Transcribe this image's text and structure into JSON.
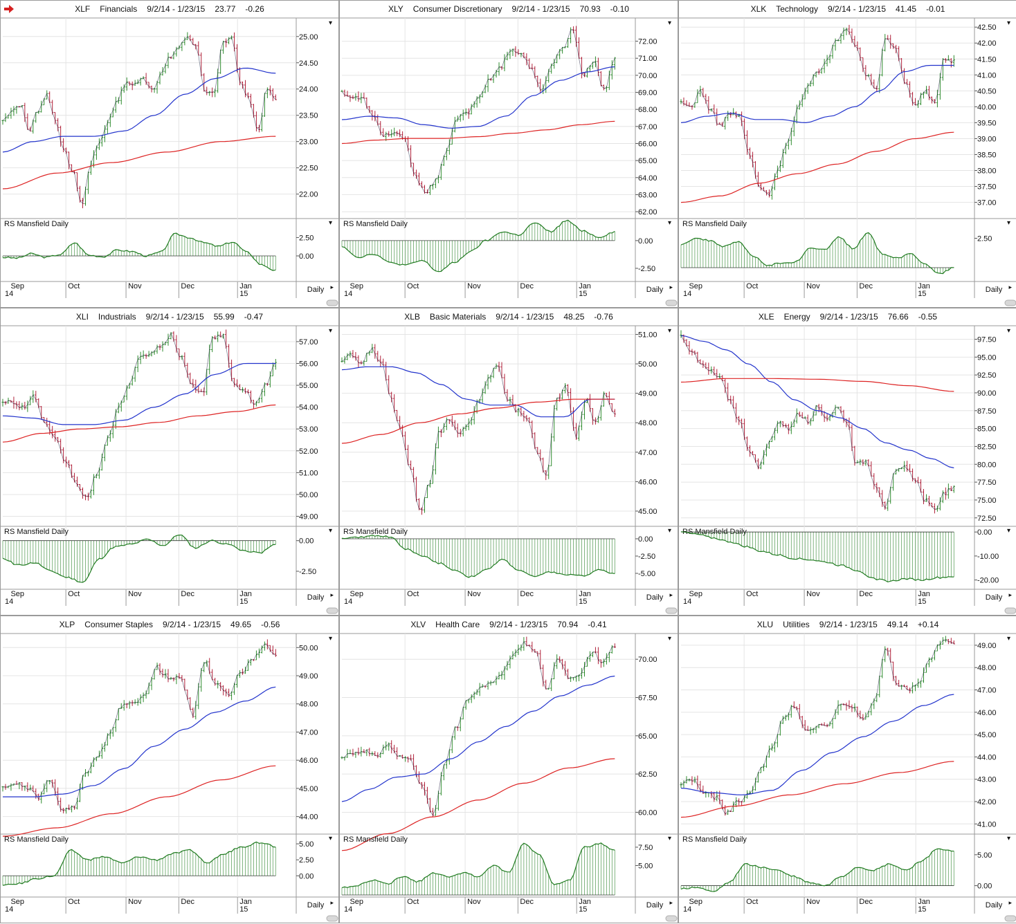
{
  "colors": {
    "price_up": "#2e8b2e",
    "price_down": "#b0213a",
    "ma_short": "#2233cc",
    "ma_long": "#dd2222",
    "rs": "#1e7a1e",
    "grid": "#e4e4e4",
    "border": "#9a9a9a",
    "text": "#111111"
  },
  "rs_label": "RS Mansfield Daily",
  "freq_label": "Daily",
  "header_icon": "arrow-right-icon",
  "date_labels": [
    "Sep",
    "Oct",
    "Nov",
    "Dec",
    "Jan"
  ],
  "year_labels": [
    "14",
    "15"
  ],
  "panels": [
    {
      "symbol": "XLF",
      "name": "Financials",
      "range": "9/2/14 - 1/23/15",
      "last": "23.77",
      "change": "-0.26",
      "price_ticks": [
        "25.00",
        "24.50",
        "24.00",
        "23.50",
        "23.00",
        "22.50",
        "22.00"
      ],
      "rs_ticks": [
        "2.50",
        "0.00"
      ]
    },
    {
      "symbol": "XLY",
      "name": "Consumer Discretionary",
      "range": "9/2/14 - 1/23/15",
      "last": "70.93",
      "change": "-0.10",
      "price_ticks": [
        "72.00",
        "71.00",
        "70.00",
        "69.00",
        "68.00",
        "67.00",
        "66.00",
        "65.00",
        "64.00",
        "63.00",
        "62.00"
      ],
      "rs_ticks": [
        "0.00",
        "-2.50"
      ]
    },
    {
      "symbol": "XLK",
      "name": "Technology",
      "range": "9/2/14 - 1/23/15",
      "last": "41.45",
      "change": "-0.01",
      "price_ticks": [
        "42.50",
        "42.00",
        "41.50",
        "41.00",
        "40.50",
        "40.00",
        "39.50",
        "39.00",
        "38.50",
        "38.00",
        "37.50",
        "37.00"
      ],
      "rs_ticks": [
        "2.50"
      ]
    },
    {
      "symbol": "XLI",
      "name": "Industrials",
      "range": "9/2/14 - 1/23/15",
      "last": "55.99",
      "change": "-0.47",
      "price_ticks": [
        "57.00",
        "56.00",
        "55.00",
        "54.00",
        "53.00",
        "52.00",
        "51.00",
        "50.00",
        "49.00"
      ],
      "rs_ticks": [
        "0.00",
        "-2.50"
      ]
    },
    {
      "symbol": "XLB",
      "name": "Basic Materials",
      "range": "9/2/14 - 1/23/15",
      "last": "48.25",
      "change": "-0.76",
      "price_ticks": [
        "51.00",
        "50.00",
        "49.00",
        "48.00",
        "47.00",
        "46.00",
        "45.00"
      ],
      "rs_ticks": [
        "0.00",
        "-2.50",
        "-5.00"
      ]
    },
    {
      "symbol": "XLE",
      "name": "Energy",
      "range": "9/2/14 - 1/23/15",
      "last": "76.66",
      "change": "-0.55",
      "price_ticks": [
        "97.50",
        "95.00",
        "92.50",
        "90.00",
        "87.50",
        "85.00",
        "82.50",
        "80.00",
        "77.50",
        "75.00",
        "72.50"
      ],
      "rs_ticks": [
        "0.00",
        "-10.00",
        "-20.00"
      ]
    },
    {
      "symbol": "XLP",
      "name": "Consumer Staples",
      "range": "9/2/14 - 1/23/15",
      "last": "49.65",
      "change": "-0.56",
      "price_ticks": [
        "50.00",
        "49.00",
        "48.00",
        "47.00",
        "46.00",
        "45.00",
        "44.00"
      ],
      "rs_ticks": [
        "5.00",
        "2.50",
        "0.00"
      ]
    },
    {
      "symbol": "XLV",
      "name": "Health Care",
      "range": "9/2/14 - 1/23/15",
      "last": "70.94",
      "change": "-0.41",
      "price_ticks": [
        "70.00",
        "67.50",
        "65.00",
        "62.50",
        "60.00"
      ],
      "rs_ticks": [
        "7.50",
        "5.00"
      ]
    },
    {
      "symbol": "XLU",
      "name": "Utilities",
      "range": "9/2/14 - 1/23/15",
      "last": "49.14",
      "change": "+0.14",
      "price_ticks": [
        "49.00",
        "48.00",
        "47.00",
        "46.00",
        "45.00",
        "44.00",
        "43.00",
        "42.00",
        "41.00"
      ],
      "rs_ticks": [
        "5.00",
        "0.00"
      ]
    }
  ],
  "chart_data": [
    {
      "type": "line",
      "title": "XLF Financials",
      "ylim": [
        21.6,
        25.3
      ],
      "rs_ylim": [
        -3.2,
        4.8
      ],
      "price_anchors": [
        23.4,
        23.6,
        23.7,
        23.2,
        23.6,
        23.9,
        23.4,
        22.8,
        22.4,
        21.8,
        22.6,
        23.0,
        23.4,
        23.8,
        24.1,
        24.1,
        24.2,
        24.0,
        24.3,
        24.6,
        24.8,
        25.0,
        24.8,
        23.9,
        23.9,
        24.9,
        25.0,
        24.1,
        23.8,
        23.2,
        24.0,
        23.8
      ],
      "ma_short_anchors": [
        22.8,
        23.0,
        23.1,
        23.1,
        23.2,
        23.5,
        23.9,
        24.2,
        24.4,
        24.3
      ],
      "ma_long_anchors": [
        22.1,
        22.4,
        22.6,
        22.8,
        23.0,
        23.1
      ],
      "rs_anchors": [
        -0.2,
        -0.3,
        0.3,
        -0.2,
        0.2,
        1.8,
        0.1,
        -0.1,
        0.8,
        0.6,
        0.0,
        0.5,
        3.0,
        2.5,
        1.8,
        1.3,
        1.9,
        0.5,
        -1.2,
        -2.0
      ]
    },
    {
      "type": "line",
      "title": "XLY Consumer Discretionary",
      "ylim": [
        61.8,
        73.2
      ],
      "rs_ylim": [
        -3.5,
        1.8
      ],
      "price_anchors": [
        69.0,
        68.7,
        68.6,
        67.5,
        66.5,
        66.6,
        66.2,
        64.0,
        63.2,
        63.8,
        65.7,
        67.5,
        67.8,
        68.7,
        69.7,
        70.4,
        71.5,
        71.3,
        70.5,
        69.0,
        70.7,
        71.6,
        72.7,
        70.0,
        70.9,
        69.1,
        71.0
      ],
      "ma_short_anchors": [
        67.4,
        67.6,
        67.5,
        67.1,
        66.9,
        67.0,
        67.6,
        68.8,
        69.7,
        70.2,
        70.5
      ],
      "ma_long_anchors": [
        66.0,
        66.2,
        66.3,
        66.3,
        66.4,
        66.6,
        66.8,
        67.1,
        67.3
      ],
      "rs_anchors": [
        -0.5,
        -1.5,
        -1.2,
        -2.0,
        -2.2,
        -1.8,
        -2.8,
        -2.0,
        -1.0,
        0.0,
        0.8,
        0.5,
        1.6,
        0.8,
        1.8,
        0.9,
        0.3,
        0.8
      ]
    },
    {
      "type": "line",
      "title": "XLK Technology",
      "ylim": [
        36.6,
        42.7
      ],
      "rs_ylim": [
        -1.0,
        4.0
      ],
      "price_anchors": [
        40.1,
        40.0,
        40.5,
        39.9,
        39.4,
        39.8,
        39.7,
        38.5,
        37.5,
        37.2,
        38.1,
        39.0,
        40.0,
        40.6,
        41.1,
        41.5,
        42.1,
        42.5,
        41.9,
        41.0,
        40.5,
        42.2,
        41.8,
        40.8,
        40.0,
        40.5,
        40.1,
        41.5,
        41.45
      ],
      "ma_short_anchors": [
        39.5,
        39.7,
        39.8,
        39.6,
        39.6,
        39.5,
        39.7,
        40.0,
        40.5,
        41.1,
        41.3,
        41.3
      ],
      "ma_long_anchors": [
        37.0,
        37.2,
        37.6,
        37.9,
        38.2,
        38.6,
        39.0,
        39.2
      ],
      "rs_anchors": [
        2.0,
        2.5,
        2.3,
        1.8,
        2.2,
        1.0,
        0.2,
        0.4,
        0.5,
        1.7,
        1.5,
        2.6,
        1.6,
        3.0,
        1.2,
        0.8,
        1.2,
        0.3,
        -0.5,
        0.0
      ]
    },
    {
      "type": "line",
      "title": "XLI Industrials",
      "ylim": [
        48.7,
        57.6
      ],
      "rs_ylim": [
        -3.8,
        1.0
      ],
      "price_anchors": [
        54.3,
        54.2,
        54.0,
        54.5,
        53.2,
        52.5,
        51.5,
        50.5,
        49.8,
        51.0,
        52.5,
        54.0,
        55.0,
        56.2,
        56.5,
        56.7,
        57.3,
        56.3,
        55.0,
        54.6,
        57.2,
        57.3,
        55.0,
        54.8,
        54.1,
        55.0,
        56.0
      ],
      "ma_short_anchors": [
        53.6,
        53.5,
        53.2,
        53.2,
        53.4,
        54.0,
        54.6,
        55.5,
        56.0,
        56.0
      ],
      "ma_long_anchors": [
        52.4,
        52.8,
        53.0,
        53.1,
        53.3,
        53.6,
        53.8,
        54.1
      ],
      "rs_anchors": [
        -1.5,
        -2.0,
        -1.8,
        -2.5,
        -3.0,
        -3.4,
        -1.5,
        -0.5,
        -0.3,
        0.1,
        -0.4,
        0.5,
        -0.6,
        0.0,
        -0.3,
        -0.8,
        -1.0,
        -0.3
      ]
    },
    {
      "type": "line",
      "title": "XLB Basic Materials",
      "ylim": [
        44.6,
        51.2
      ],
      "rs_ylim": [
        -7.0,
        1.5
      ],
      "price_anchors": [
        50.1,
        50.3,
        50.0,
        50.5,
        50.1,
        48.8,
        47.8,
        46.5,
        45.0,
        46.0,
        47.7,
        48.1,
        47.6,
        48.0,
        48.7,
        49.5,
        50.0,
        48.8,
        48.4,
        48.2,
        47.0,
        46.2,
        48.8,
        49.2,
        47.5,
        48.8,
        48.0,
        49.0,
        48.25
      ],
      "ma_short_anchors": [
        49.8,
        49.9,
        49.9,
        49.7,
        49.3,
        48.8,
        48.6,
        48.6,
        48.2,
        48.2,
        48.8,
        48.8
      ],
      "ma_long_anchors": [
        47.3,
        47.6,
        48.0,
        48.3,
        48.5,
        48.7,
        48.8,
        48.8
      ],
      "rs_anchors": [
        0.0,
        0.2,
        0.5,
        0.3,
        -1.5,
        -2.5,
        -3.5,
        -4.5,
        -5.5,
        -4.5,
        -3.0,
        -4.5,
        -5.5,
        -4.8,
        -5.2,
        -5.4,
        -4.5,
        -5.0
      ]
    },
    {
      "type": "line",
      "title": "XLE Energy",
      "ylim": [
        71.8,
        99.0
      ],
      "rs_ylim": [
        -23.0,
        1.5
      ],
      "price_anchors": [
        98.0,
        96.0,
        94.0,
        93.0,
        92.0,
        89.0,
        86.0,
        82.0,
        79.5,
        83.0,
        86.0,
        85.0,
        87.0,
        86.0,
        88.0,
        86.5,
        88.0,
        86.0,
        80.0,
        80.5,
        77.0,
        74.0,
        79.0,
        79.5,
        78.0,
        75.0,
        73.5,
        76.0,
        76.66
      ],
      "ma_short_anchors": [
        98.0,
        97.2,
        96.0,
        94.0,
        91.5,
        89.0,
        87.5,
        86.5,
        85.0,
        83.0,
        82.0,
        80.8,
        79.5
      ],
      "ma_long_anchors": [
        91.5,
        92.0,
        92.0,
        91.9,
        91.6,
        91.0,
        90.2
      ],
      "rs_anchors": [
        0.0,
        -1.0,
        -2.5,
        -4.0,
        -6.0,
        -8.0,
        -9.5,
        -11.0,
        -11.5,
        -12.5,
        -14.0,
        -16.0,
        -19.5,
        -20.5,
        -19.5,
        -20.0,
        -19.0,
        -18.5
      ]
    },
    {
      "type": "line",
      "title": "XLP Consumer Staples",
      "ylim": [
        43.5,
        50.4
      ],
      "rs_ylim": [
        -3.0,
        6.2
      ],
      "price_anchors": [
        45.0,
        45.2,
        45.0,
        44.7,
        45.3,
        44.2,
        44.3,
        45.6,
        46.1,
        46.9,
        47.9,
        48.0,
        48.4,
        49.3,
        48.9,
        48.9,
        47.6,
        49.5,
        48.7,
        48.3,
        49.1,
        49.5,
        50.1,
        49.65
      ],
      "ma_short_anchors": [
        44.7,
        44.7,
        44.8,
        45.1,
        45.7,
        46.5,
        47.1,
        47.7,
        48.1,
        48.6
      ],
      "ma_long_anchors": [
        43.3,
        43.6,
        44.1,
        44.7,
        45.3,
        45.8
      ],
      "rs_anchors": [
        -1.5,
        -1.2,
        -0.4,
        0.0,
        4.0,
        2.5,
        3.0,
        2.0,
        3.0,
        2.5,
        3.5,
        4.0,
        2.0,
        3.5,
        4.5,
        5.2,
        4.6
      ]
    },
    {
      "type": "line",
      "title": "XLV Health Care",
      "ylim": [
        58.8,
        71.5
      ],
      "rs_ylim": [
        1.0,
        9.0
      ],
      "price_anchors": [
        63.7,
        63.9,
        64.0,
        63.6,
        64.5,
        63.7,
        63.4,
        61.7,
        59.9,
        63.0,
        65.5,
        67.3,
        68.0,
        68.5,
        69.0,
        70.2,
        71.0,
        70.6,
        68.0,
        70.0,
        68.7,
        69.0,
        70.5,
        69.8,
        70.94
      ],
      "ma_short_anchors": [
        60.7,
        61.5,
        62.3,
        62.5,
        63.5,
        64.6,
        65.6,
        66.6,
        67.6,
        68.3,
        68.9
      ],
      "ma_long_anchors": [
        57.5,
        58.6,
        59.7,
        60.8,
        61.9,
        62.9,
        63.5
      ],
      "rs_anchors": [
        2.0,
        2.3,
        3.0,
        2.5,
        3.5,
        2.8,
        4.0,
        3.5,
        4.0,
        3.5,
        5.0,
        4.0,
        8.0,
        6.5,
        2.5,
        3.0,
        7.5,
        8.0,
        7.0
      ]
    },
    {
      "type": "line",
      "title": "XLU Utilities",
      "ylim": [
        40.7,
        49.4
      ],
      "rs_ylim": [
        -1.5,
        8.0
      ],
      "price_anchors": [
        42.8,
        43.0,
        42.4,
        42.2,
        41.5,
        42.0,
        42.3,
        43.5,
        44.4,
        45.7,
        46.3,
        45.2,
        45.4,
        45.5,
        46.3,
        46.3,
        45.6,
        46.5,
        48.9,
        47.2,
        47.0,
        47.4,
        48.5,
        49.2,
        49.14
      ],
      "ma_short_anchors": [
        42.6,
        42.4,
        42.3,
        42.5,
        43.4,
        44.2,
        44.9,
        45.6,
        46.3,
        46.8
      ],
      "ma_long_anchors": [
        41.3,
        41.8,
        42.3,
        42.8,
        43.3,
        43.8
      ],
      "rs_anchors": [
        -0.5,
        -0.3,
        -1.0,
        0.5,
        3.5,
        3.0,
        2.5,
        1.5,
        0.5,
        0.0,
        1.5,
        3.0,
        2.5,
        3.5,
        2.5,
        4.0,
        6.0,
        5.5
      ]
    }
  ]
}
